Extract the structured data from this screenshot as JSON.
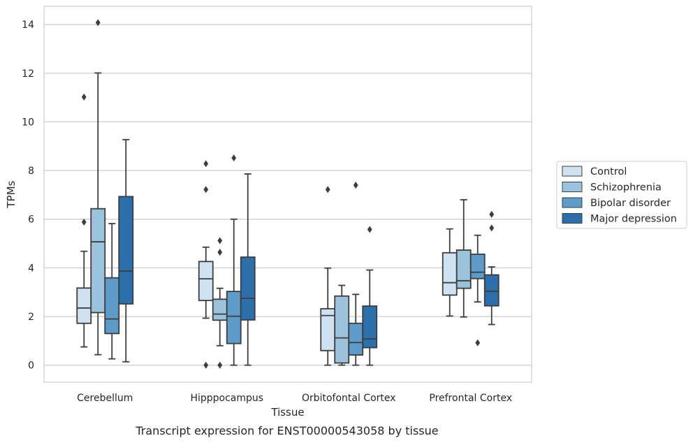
{
  "chart_data": {
    "type": "box",
    "xlabel": "Tissue",
    "ylabel": "TPMs",
    "caption": "Transcript expression for ENST00000543058 by tissue",
    "ylim": [
      -0.7,
      14.75
    ],
    "yticks": [
      0,
      2,
      4,
      6,
      8,
      10,
      12,
      14
    ],
    "grid": "horizontal",
    "legend_position": "right",
    "categories": [
      "Cerebellum",
      "Hipppocampus",
      "Orbitofontal Cortex",
      "Prefrontal Cortex"
    ],
    "series": [
      {
        "name": "Control",
        "color": "#d0e1f2",
        "boxes": [
          {
            "q1": 1.72,
            "median": 2.35,
            "q3": 3.17,
            "whisker_low": 0.75,
            "whisker_high": 4.68,
            "outliers": [
              5.88,
              11.02
            ]
          },
          {
            "q1": 2.66,
            "median": 3.55,
            "q3": 4.26,
            "whisker_low": 1.93,
            "whisker_high": 4.85,
            "outliers": [
              0.0,
              7.22,
              8.28
            ]
          },
          {
            "q1": 0.6,
            "median": 2.04,
            "q3": 2.32,
            "whisker_low": 0.0,
            "whisker_high": 3.99,
            "outliers": [
              7.22
            ]
          },
          {
            "q1": 2.88,
            "median": 3.39,
            "q3": 4.62,
            "whisker_low": 2.02,
            "whisker_high": 5.6,
            "outliers": []
          }
        ]
      },
      {
        "name": "Schizophrenia",
        "color": "#9cc3dd",
        "boxes": [
          {
            "q1": 2.16,
            "median": 5.07,
            "q3": 6.43,
            "whisker_low": 0.43,
            "whisker_high": 12.01,
            "outliers": [
              14.08
            ]
          },
          {
            "q1": 1.85,
            "median": 2.1,
            "q3": 2.71,
            "whisker_low": 0.8,
            "whisker_high": 3.16,
            "outliers": [
              0.0,
              4.64,
              5.12
            ]
          },
          {
            "q1": 0.09,
            "median": 1.12,
            "q3": 2.84,
            "whisker_low": 0.0,
            "whisker_high": 3.28,
            "outliers": []
          },
          {
            "q1": 3.16,
            "median": 3.47,
            "q3": 4.73,
            "whisker_low": 1.98,
            "whisker_high": 6.8,
            "outliers": []
          }
        ]
      },
      {
        "name": "Bipolar disorder",
        "color": "#5f9bc8",
        "boxes": [
          {
            "q1": 1.3,
            "median": 1.9,
            "q3": 3.59,
            "whisker_low": 0.26,
            "whisker_high": 5.82,
            "outliers": []
          },
          {
            "q1": 0.89,
            "median": 2.01,
            "q3": 3.03,
            "whisker_low": 0.0,
            "whisker_high": 6.0,
            "outliers": [
              8.52
            ]
          },
          {
            "q1": 0.42,
            "median": 0.93,
            "q3": 1.72,
            "whisker_low": 0.0,
            "whisker_high": 2.91,
            "outliers": [
              7.4
            ]
          },
          {
            "q1": 3.56,
            "median": 3.82,
            "q3": 4.56,
            "whisker_low": 2.6,
            "whisker_high": 5.34,
            "outliers": [
              0.92
            ]
          }
        ]
      },
      {
        "name": "Major depression",
        "color": "#2c6fab",
        "boxes": [
          {
            "q1": 2.52,
            "median": 3.87,
            "q3": 6.93,
            "whisker_low": 0.14,
            "whisker_high": 9.27,
            "outliers": []
          },
          {
            "q1": 1.86,
            "median": 2.75,
            "q3": 4.44,
            "whisker_low": 0.0,
            "whisker_high": 7.86,
            "outliers": []
          },
          {
            "q1": 0.72,
            "median": 1.08,
            "q3": 2.43,
            "whisker_low": 0.0,
            "whisker_high": 3.91,
            "outliers": [
              5.58
            ]
          },
          {
            "q1": 2.44,
            "median": 3.04,
            "q3": 3.71,
            "whisker_low": 1.67,
            "whisker_high": 4.04,
            "outliers": [
              5.64,
              6.2
            ]
          }
        ]
      }
    ]
  }
}
